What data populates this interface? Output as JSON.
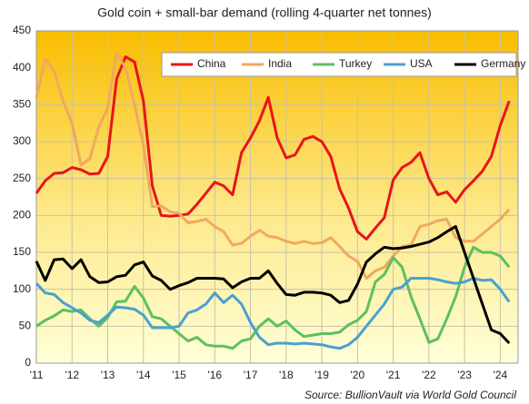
{
  "chart_data": {
    "type": "line",
    "title": "Gold coin + small-bar demand (rolling 4-quarter net tonnes)",
    "source": "Source: BullionVault via World Gold Council",
    "x": [
      2011,
      2011.25,
      2011.5,
      2011.75,
      2012,
      2012.25,
      2012.5,
      2012.75,
      2013,
      2013.25,
      2013.5,
      2013.75,
      2014,
      2014.25,
      2014.5,
      2014.75,
      2015,
      2015.25,
      2015.5,
      2015.75,
      2016,
      2016.25,
      2016.5,
      2016.75,
      2017,
      2017.25,
      2017.5,
      2017.75,
      2018,
      2018.25,
      2018.5,
      2018.75,
      2019,
      2019.25,
      2019.5,
      2019.75,
      2020,
      2020.25,
      2020.5,
      2020.75,
      2021,
      2021.25,
      2021.5,
      2021.75,
      2022,
      2022.25,
      2022.5,
      2022.75,
      2023,
      2023.25,
      2023.5,
      2023.75,
      2024,
      2024.25
    ],
    "series": [
      {
        "name": "China",
        "color": "#e8141b",
        "values": [
          230,
          247,
          257,
          258,
          265,
          262,
          256,
          257,
          280,
          385,
          415,
          408,
          355,
          240,
          200,
          199,
          200,
          202,
          215,
          230,
          245,
          240,
          228,
          285,
          305,
          328,
          360,
          305,
          278,
          282,
          303,
          307,
          300,
          280,
          236,
          210,
          178,
          168,
          183,
          197,
          248,
          265,
          272,
          285,
          250,
          228,
          232,
          218,
          235,
          247,
          260,
          280,
          322,
          355
        ]
      },
      {
        "name": "India",
        "color": "#f0a860",
        "values": [
          360,
          412,
          395,
          355,
          325,
          268,
          277,
          320,
          345,
          420,
          400,
          350,
          295,
          212,
          213,
          205,
          203,
          190,
          192,
          195,
          185,
          178,
          160,
          162,
          172,
          180,
          172,
          170,
          165,
          162,
          165,
          162,
          163,
          170,
          158,
          145,
          138,
          115,
          125,
          130,
          145,
          158,
          160,
          185,
          188,
          193,
          195,
          170,
          165,
          165,
          175,
          185,
          195,
          208
        ]
      },
      {
        "name": "Turkey",
        "color": "#5cc060",
        "values": [
          50,
          58,
          64,
          72,
          70,
          72,
          60,
          50,
          62,
          83,
          84,
          104,
          88,
          63,
          60,
          50,
          40,
          30,
          35,
          25,
          23,
          23,
          20,
          30,
          33,
          50,
          60,
          50,
          57,
          45,
          36,
          38,
          40,
          40,
          42,
          52,
          58,
          70,
          110,
          120,
          143,
          130,
          90,
          60,
          28,
          33,
          60,
          90,
          130,
          157,
          150,
          150,
          145,
          130
        ]
      },
      {
        "name": "USA",
        "color": "#4aa0d0",
        "values": [
          108,
          95,
          93,
          82,
          75,
          68,
          58,
          55,
          65,
          76,
          75,
          73,
          65,
          48,
          48,
          48,
          50,
          68,
          72,
          80,
          95,
          82,
          92,
          80,
          55,
          35,
          25,
          27,
          27,
          26,
          27,
          26,
          25,
          22,
          20,
          25,
          35,
          50,
          65,
          80,
          100,
          103,
          115,
          115,
          115,
          113,
          110,
          108,
          110,
          115,
          112,
          113,
          100,
          83
        ]
      },
      {
        "name": "Germany",
        "color": "#000000",
        "values": [
          138,
          112,
          140,
          141,
          128,
          140,
          117,
          109,
          110,
          117,
          119,
          133,
          137,
          118,
          112,
          100,
          105,
          109,
          115,
          115,
          115,
          114,
          102,
          110,
          115,
          115,
          125,
          108,
          93,
          92,
          96,
          96,
          95,
          92,
          82,
          85,
          107,
          137,
          148,
          157,
          155,
          156,
          158,
          161,
          164,
          170,
          178,
          185,
          150,
          115,
          80,
          45,
          40,
          27
        ]
      }
    ],
    "xlim": [
      2011,
      2024.5
    ],
    "xticks": [
      {
        "value": 2011,
        "label": "'11"
      },
      {
        "value": 2012,
        "label": "'12"
      },
      {
        "value": 2013,
        "label": "'13"
      },
      {
        "value": 2014,
        "label": "'14"
      },
      {
        "value": 2015,
        "label": "'15"
      },
      {
        "value": 2016,
        "label": "'16"
      },
      {
        "value": 2017,
        "label": "'17"
      },
      {
        "value": 2018,
        "label": "'18"
      },
      {
        "value": 2019,
        "label": "'19"
      },
      {
        "value": 2020,
        "label": "'20"
      },
      {
        "value": 2021,
        "label": "'21"
      },
      {
        "value": 2022,
        "label": "'22"
      },
      {
        "value": 2023,
        "label": "'23"
      },
      {
        "value": 2024,
        "label": "'24"
      }
    ],
    "ylim": [
      0,
      450
    ],
    "yticks": [
      0,
      50,
      100,
      150,
      200,
      250,
      300,
      350,
      400,
      450
    ],
    "grid": true,
    "legend": "top-right"
  }
}
